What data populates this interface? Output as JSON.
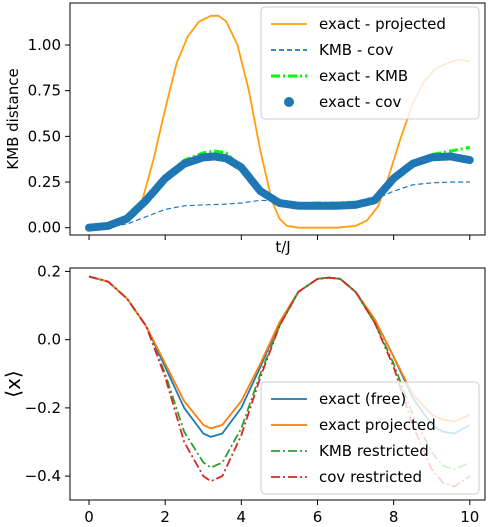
{
  "chart_data": [
    {
      "type": "line",
      "xlabel": "t/J",
      "ylabel": "KMB distance",
      "xlim": [
        -0.5,
        10.4
      ],
      "ylim": [
        -0.04,
        1.23
      ],
      "yticks": [
        "0.00",
        "0.25",
        "0.50",
        "0.75",
        "1.00"
      ],
      "ytick_values": [
        0.0,
        0.25,
        0.5,
        0.75,
        1.0
      ],
      "xticks": [
        0,
        2,
        4,
        6,
        8,
        10
      ],
      "xtick_labels_visible": false,
      "legend_position": "top-right",
      "series": [
        {
          "name": "exact - projected",
          "style": "solid",
          "color": "#ff9f0e",
          "x": [
            0.0,
            0.5,
            1.0,
            1.4,
            1.7,
            2.0,
            2.3,
            2.6,
            2.9,
            3.2,
            3.4,
            3.6,
            3.9,
            4.2,
            4.5,
            4.8,
            5.0,
            5.2,
            5.5,
            6.0,
            6.5,
            7.0,
            7.3,
            7.6,
            7.9,
            8.2,
            8.5,
            8.8,
            9.1,
            9.4,
            9.7,
            10.0
          ],
          "y": [
            0.0,
            0.01,
            0.05,
            0.15,
            0.38,
            0.65,
            0.9,
            1.05,
            1.13,
            1.16,
            1.16,
            1.13,
            1.0,
            0.75,
            0.42,
            0.15,
            0.05,
            0.01,
            0.0,
            0.0,
            0.0,
            0.01,
            0.04,
            0.12,
            0.3,
            0.5,
            0.68,
            0.8,
            0.87,
            0.9,
            0.92,
            0.91
          ]
        },
        {
          "name": "KMB - cov",
          "style": "dashed",
          "color": "#1f77b4",
          "x": [
            0.0,
            0.5,
            1.0,
            1.5,
            2.0,
            2.5,
            3.0,
            3.5,
            4.0,
            4.5,
            5.0,
            5.5,
            6.0,
            6.5,
            7.0,
            7.5,
            8.0,
            8.5,
            9.0,
            9.5,
            10.0
          ],
          "y": [
            0.0,
            0.005,
            0.02,
            0.06,
            0.1,
            0.12,
            0.125,
            0.128,
            0.135,
            0.15,
            0.145,
            0.13,
            0.128,
            0.13,
            0.14,
            0.155,
            0.2,
            0.235,
            0.245,
            0.25,
            0.25
          ]
        },
        {
          "name": "exact - KMB",
          "style": "dashdot",
          "color": "#00ff00",
          "x": [
            0.0,
            0.5,
            1.0,
            1.5,
            2.0,
            2.5,
            3.0,
            3.3,
            3.6,
            4.0,
            4.5,
            5.0,
            5.5,
            6.0,
            6.5,
            7.0,
            7.5,
            8.0,
            8.5,
            9.0,
            9.5,
            10.0
          ],
          "y": [
            0.0,
            0.01,
            0.05,
            0.15,
            0.28,
            0.37,
            0.41,
            0.42,
            0.41,
            0.33,
            0.2,
            0.14,
            0.13,
            0.135,
            0.135,
            0.14,
            0.16,
            0.27,
            0.36,
            0.4,
            0.42,
            0.44
          ]
        },
        {
          "name": "exact - cov",
          "style": "markers",
          "color": "#1f77b4",
          "x": [
            0.0,
            0.5,
            1.0,
            1.5,
            2.0,
            2.5,
            3.0,
            3.3,
            3.6,
            4.0,
            4.5,
            5.0,
            5.5,
            6.0,
            6.5,
            7.0,
            7.5,
            8.0,
            8.5,
            9.0,
            9.5,
            10.0
          ],
          "y": [
            0.0,
            0.01,
            0.05,
            0.15,
            0.27,
            0.35,
            0.385,
            0.39,
            0.38,
            0.33,
            0.2,
            0.135,
            0.12,
            0.12,
            0.12,
            0.125,
            0.15,
            0.27,
            0.35,
            0.385,
            0.39,
            0.37
          ]
        }
      ]
    },
    {
      "type": "line",
      "xlabel": "",
      "ylabel": "⟨x⟩",
      "xlim": [
        -0.5,
        10.4
      ],
      "ylim": [
        -0.47,
        0.21
      ],
      "yticks": [
        "−0.4",
        "−0.2",
        "0.0",
        "0.2"
      ],
      "ytick_values": [
        -0.4,
        -0.2,
        0.0,
        0.2
      ],
      "xticks": [
        "0",
        "2",
        "4",
        "6",
        "8",
        "10"
      ],
      "xtick_values": [
        0,
        2,
        4,
        6,
        8,
        10
      ],
      "legend_position": "bottom-right",
      "series": [
        {
          "name": "exact (free)",
          "style": "solid",
          "color": "#1f77b4",
          "x": [
            0.0,
            0.5,
            1.0,
            1.5,
            2.0,
            2.5,
            3.0,
            3.2,
            3.5,
            4.0,
            4.5,
            5.0,
            5.5,
            6.0,
            6.3,
            6.6,
            7.0,
            7.5,
            8.0,
            8.5,
            9.0,
            9.3,
            9.6,
            10.0
          ],
          "y": [
            0.185,
            0.17,
            0.12,
            0.04,
            -0.08,
            -0.2,
            -0.275,
            -0.285,
            -0.275,
            -0.2,
            -0.08,
            0.05,
            0.14,
            0.178,
            0.182,
            0.178,
            0.14,
            0.06,
            -0.05,
            -0.17,
            -0.25,
            -0.27,
            -0.275,
            -0.25
          ]
        },
        {
          "name": "exact projected",
          "style": "solid",
          "color": "#ff7f0e",
          "x": [
            0.0,
            0.5,
            1.0,
            1.5,
            2.0,
            2.5,
            3.0,
            3.2,
            3.5,
            4.0,
            4.5,
            5.0,
            5.5,
            6.0,
            6.3,
            6.6,
            7.0,
            7.5,
            8.0,
            8.5,
            9.0,
            9.3,
            9.6,
            10.0
          ],
          "y": [
            0.185,
            0.17,
            0.12,
            0.04,
            -0.07,
            -0.18,
            -0.25,
            -0.26,
            -0.25,
            -0.18,
            -0.07,
            0.05,
            0.14,
            0.178,
            0.182,
            0.178,
            0.14,
            0.06,
            -0.05,
            -0.16,
            -0.22,
            -0.235,
            -0.24,
            -0.22
          ]
        },
        {
          "name": "KMB restricted",
          "style": "dashdot",
          "color": "#2ca02c",
          "x": [
            0.0,
            0.5,
            1.0,
            1.5,
            2.0,
            2.5,
            3.0,
            3.2,
            3.5,
            4.0,
            4.5,
            5.0,
            5.5,
            6.0,
            6.3,
            6.6,
            7.0,
            7.5,
            8.0,
            8.5,
            9.0,
            9.3,
            9.6,
            10.0
          ],
          "y": [
            0.185,
            0.17,
            0.12,
            0.04,
            -0.1,
            -0.27,
            -0.36,
            -0.375,
            -0.36,
            -0.26,
            -0.1,
            0.04,
            0.14,
            0.178,
            0.182,
            0.178,
            0.14,
            0.05,
            -0.07,
            -0.22,
            -0.33,
            -0.37,
            -0.38,
            -0.36
          ]
        },
        {
          "name": "cov restricted",
          "style": "dashdot",
          "color": "#d62728",
          "x": [
            0.0,
            0.5,
            1.0,
            1.5,
            2.0,
            2.5,
            3.0,
            3.2,
            3.5,
            4.0,
            4.5,
            5.0,
            5.5,
            6.0,
            6.3,
            6.6,
            7.0,
            7.5,
            8.0,
            8.5,
            9.0,
            9.3,
            9.6,
            10.0
          ],
          "y": [
            0.185,
            0.17,
            0.12,
            0.04,
            -0.11,
            -0.3,
            -0.4,
            -0.415,
            -0.4,
            -0.28,
            -0.11,
            0.04,
            0.14,
            0.178,
            0.182,
            0.178,
            0.14,
            0.05,
            -0.08,
            -0.25,
            -0.38,
            -0.42,
            -0.43,
            -0.4
          ]
        }
      ]
    }
  ]
}
